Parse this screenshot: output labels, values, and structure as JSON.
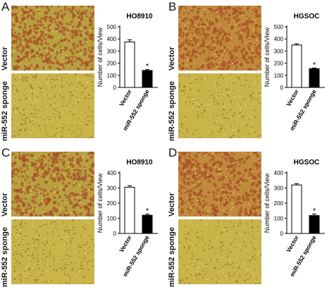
{
  "panels": [
    {
      "letter": "A",
      "cell_line": "HO8910",
      "style": "dense"
    },
    {
      "letter": "B",
      "cell_line": "HGSOC",
      "style": "patchy"
    },
    {
      "letter": "C",
      "cell_line": "HO8910",
      "style": "dense"
    },
    {
      "letter": "D",
      "cell_line": "HGSOC",
      "style": "patchy"
    }
  ],
  "row_labels": {
    "top": "Vector",
    "bottom": "miR-552 sponge"
  },
  "colors": {
    "stain_bg": "#b8a040",
    "stain_cell": "#a8502a",
    "sponge_bg": "#c9b44a",
    "patchy_bg": "#c08a3c",
    "open_bar": "#ffffff",
    "filled_bar": "#000000"
  },
  "chart_data": [
    {
      "type": "bar",
      "title": "HO8910",
      "categories": [
        "Vector",
        "miR-552 sponge"
      ],
      "values": [
        375,
        140
      ],
      "errors": [
        18,
        8
      ],
      "significance": [
        "",
        "*"
      ],
      "ylabel": "Number of cells/View",
      "ylim": [
        0,
        500
      ],
      "yticks": [
        0,
        100,
        200,
        300,
        400,
        500
      ]
    },
    {
      "type": "bar",
      "title": "HGSOC",
      "categories": [
        "Vector",
        "miR-552 sponge"
      ],
      "values": [
        350,
        155
      ],
      "errors": [
        10,
        6
      ],
      "significance": [
        "",
        "*"
      ],
      "ylabel": "Number of cells/View",
      "ylim": [
        0,
        500
      ],
      "yticks": [
        0,
        100,
        200,
        300,
        400,
        500
      ]
    },
    {
      "type": "bar",
      "title": "HO8910",
      "categories": [
        "Vector",
        "miR-552 sponge"
      ],
      "values": [
        305,
        120
      ],
      "errors": [
        10,
        8
      ],
      "significance": [
        "",
        "*"
      ],
      "ylabel": "Number of cells/View",
      "ylim": [
        0,
        400
      ],
      "yticks": [
        0,
        100,
        200,
        300,
        400
      ]
    },
    {
      "type": "bar",
      "title": "HGSOC",
      "categories": [
        "Vector",
        "miR-552 sponge"
      ],
      "values": [
        320,
        118
      ],
      "errors": [
        8,
        10
      ],
      "significance": [
        "",
        "*"
      ],
      "ylabel": "Number of cells/View",
      "ylim": [
        0,
        400
      ],
      "yticks": [
        0,
        100,
        200,
        300,
        400
      ]
    }
  ]
}
